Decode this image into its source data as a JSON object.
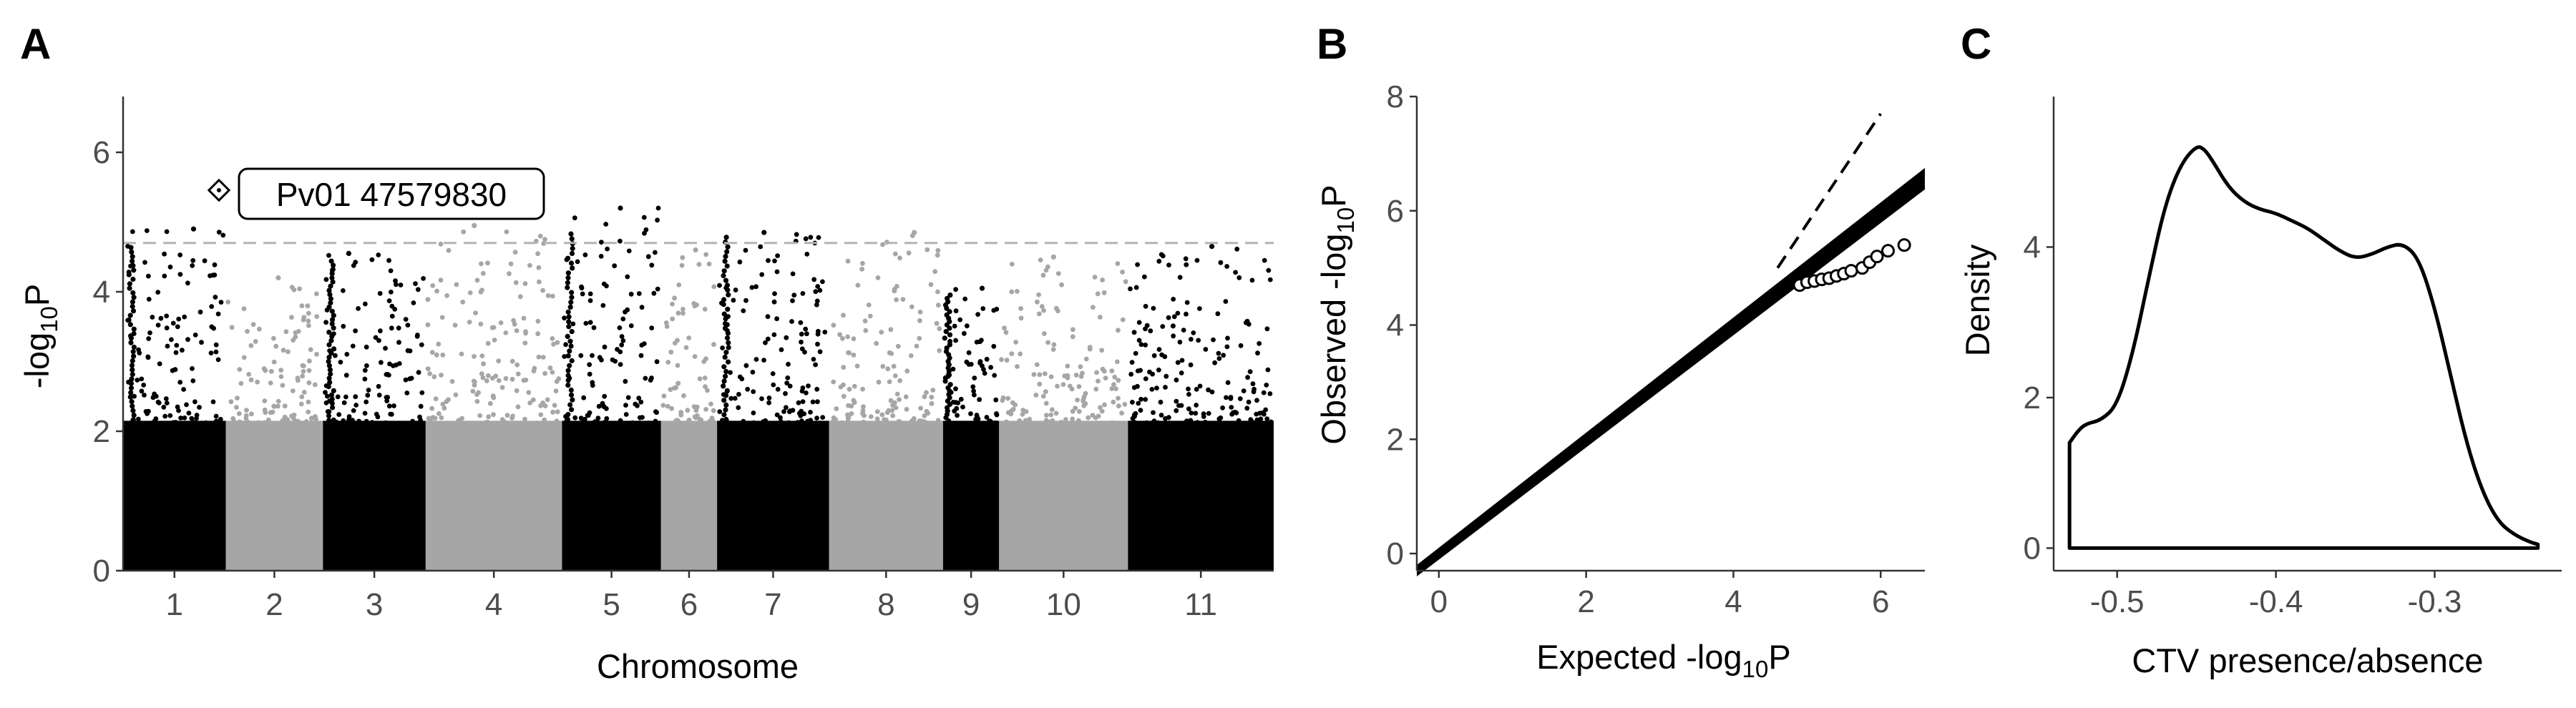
{
  "panels": {
    "A": {
      "letter": "A"
    },
    "B": {
      "letter": "B"
    },
    "C": {
      "letter": "C"
    }
  },
  "chart_data": [
    {
      "type": "scatter",
      "subtype": "manhattan",
      "panel": "A",
      "xlabel": "Chromosome",
      "ylabel": "-log10P",
      "ylabel_base": "-log",
      "ylabel_sub": "10",
      "ylabel_tail": "P",
      "ylim": [
        0,
        6.8
      ],
      "yticks": [
        0,
        2,
        4,
        6
      ],
      "significance_threshold": 4.7,
      "colors": {
        "odd": "#000000",
        "even": "#a6a6a6",
        "threshold": "#b3b3b3"
      },
      "chromosomes": [
        {
          "label": "1",
          "span": [
            0.0,
            2.75
          ],
          "peak": 4.9,
          "spike": 4.7
        },
        {
          "label": "2",
          "span": [
            2.75,
            5.35
          ],
          "peak": 4.2
        },
        {
          "label": "3",
          "span": [
            5.35,
            8.1
          ],
          "peak": 4.55,
          "spike": 4.5
        },
        {
          "label": "4",
          "span": [
            8.1,
            11.75
          ],
          "peak": 4.95
        },
        {
          "label": "5",
          "span": [
            11.75,
            14.4
          ],
          "peak": 5.2,
          "spike": 4.9
        },
        {
          "label": "6",
          "span": [
            14.4,
            15.9
          ],
          "peak": 4.6
        },
        {
          "label": "7",
          "span": [
            15.9,
            18.9
          ],
          "peak": 4.85,
          "spike": 4.85
        },
        {
          "label": "8",
          "span": [
            18.9,
            21.95
          ],
          "peak": 4.85
        },
        {
          "label": "9",
          "span": [
            21.95,
            23.45
          ],
          "peak": 4.05,
          "spike": 4.0
        },
        {
          "label": "10",
          "span": [
            23.45,
            26.9
          ],
          "peak": 4.5
        },
        {
          "label": "11",
          "span": [
            26.9,
            30.8
          ],
          "peak": 4.65
        }
      ],
      "highlight": {
        "label": "Pv01 47579830",
        "x": 2.5,
        "y": 5.35
      }
    },
    {
      "type": "scatter",
      "subtype": "qq",
      "panel": "B",
      "xlabel": "Expected -log10P",
      "xlabel_base": "Expected -log",
      "xlabel_sub": "10",
      "xlabel_tail": "P",
      "ylabel": "Observed -log10P",
      "ylabel_base": "Observed -log",
      "ylabel_sub": "10",
      "ylabel_tail": "P",
      "xlim": [
        -0.3,
        6.6
      ],
      "ylim": [
        -0.3,
        8.0
      ],
      "xticks": [
        0,
        2,
        4,
        6
      ],
      "yticks": [
        0,
        2,
        4,
        6,
        8
      ],
      "band_end": [
        6.6,
        6.6
      ],
      "dashed_line": [
        [
          4.6,
          5.0
        ],
        [
          6.0,
          7.7
        ]
      ],
      "tail_points": [
        [
          4.9,
          4.7
        ],
        [
          5.0,
          4.75
        ],
        [
          5.1,
          4.77
        ],
        [
          5.2,
          4.8
        ],
        [
          5.3,
          4.82
        ],
        [
          5.4,
          4.86
        ],
        [
          5.5,
          4.9
        ],
        [
          5.6,
          4.95
        ],
        [
          5.75,
          5.0
        ],
        [
          5.85,
          5.1
        ],
        [
          5.95,
          5.2
        ],
        [
          6.1,
          5.3
        ],
        [
          6.32,
          5.4
        ]
      ]
    },
    {
      "type": "area",
      "subtype": "density",
      "panel": "C",
      "xlabel": "CTV presence/absence",
      "ylabel": "Density",
      "xlim": [
        -0.54,
        -0.22
      ],
      "ylim": [
        -0.3,
        6.0
      ],
      "xticks": [
        -0.5,
        -0.4,
        -0.3
      ],
      "xtick_labels": [
        "-0.5",
        "-0.4",
        "-0.3"
      ],
      "yticks": [
        0,
        2,
        4
      ],
      "x": [
        -0.53,
        -0.525,
        -0.52,
        -0.51,
        -0.5,
        -0.49,
        -0.48,
        -0.47,
        -0.46,
        -0.45,
        -0.445,
        -0.44,
        -0.43,
        -0.42,
        -0.41,
        -0.4,
        -0.39,
        -0.38,
        -0.37,
        -0.36,
        -0.35,
        -0.34,
        -0.33,
        -0.32,
        -0.31,
        -0.3,
        -0.29,
        -0.28,
        -0.27,
        -0.26,
        -0.25,
        -0.24,
        -0.235
      ],
      "y": [
        1.4,
        1.55,
        1.65,
        1.7,
        1.9,
        2.6,
        3.6,
        4.55,
        5.1,
        5.35,
        5.3,
        5.15,
        4.8,
        4.6,
        4.5,
        4.45,
        4.35,
        4.25,
        4.1,
        3.95,
        3.85,
        3.9,
        4.0,
        4.05,
        3.85,
        3.2,
        2.3,
        1.4,
        0.75,
        0.35,
        0.18,
        0.08,
        0.05
      ]
    }
  ]
}
